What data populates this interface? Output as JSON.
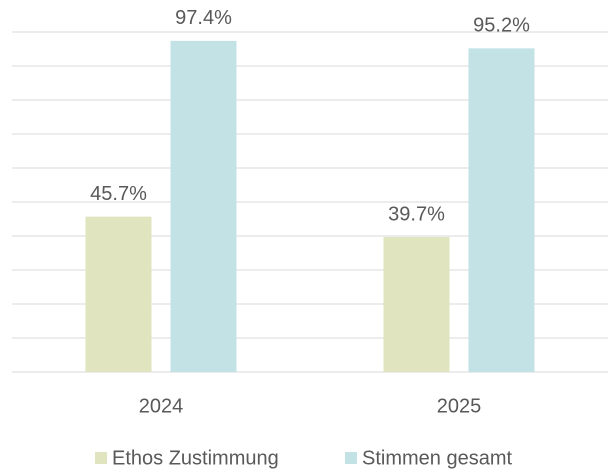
{
  "chart_data": {
    "type": "bar",
    "categories": [
      "2024",
      "2025"
    ],
    "series": [
      {
        "name": "Ethos Zustimmung",
        "color": "#e0e5c0",
        "values": [
          45.7,
          39.7
        ],
        "value_labels": [
          "45.7%",
          "39.7%"
        ]
      },
      {
        "name": "Stimmen gesamt",
        "color": "#c3e2e6",
        "values": [
          97.4,
          95.2
        ],
        "value_labels": [
          "97.4%",
          "95.2%"
        ]
      }
    ],
    "ylim": [
      0,
      100
    ],
    "yticks": [
      0,
      10,
      20,
      30,
      40,
      50,
      60,
      70,
      80,
      90,
      100
    ],
    "grid": true,
    "legend": "bottom"
  }
}
